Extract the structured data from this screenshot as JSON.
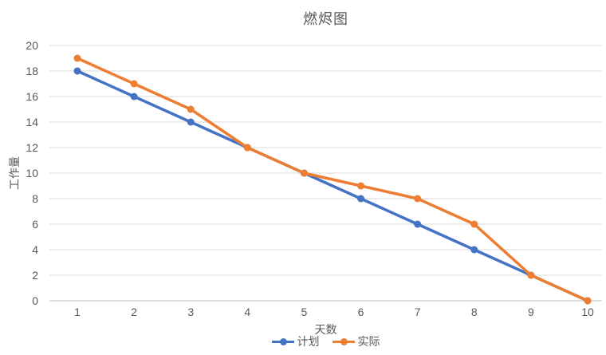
{
  "chart_data": {
    "type": "line",
    "title": "燃烬图",
    "xlabel": "天数",
    "ylabel": "工作量",
    "categories": [
      "1",
      "2",
      "3",
      "4",
      "5",
      "6",
      "7",
      "8",
      "9",
      "10"
    ],
    "series": [
      {
        "name": "计划",
        "color": "#4472C4",
        "values": [
          18,
          16,
          14,
          12,
          10,
          8,
          6,
          4,
          2,
          0
        ]
      },
      {
        "name": "实际",
        "color": "#ED7D31",
        "values": [
          19,
          17,
          15,
          12,
          10,
          9,
          8,
          6,
          2,
          0
        ]
      }
    ],
    "ylim": [
      0,
      20
    ],
    "yticks": [
      0,
      2,
      4,
      6,
      8,
      10,
      12,
      14,
      16,
      18,
      20
    ],
    "grid": true,
    "legend_position": "bottom",
    "colors": {
      "text": "#595959",
      "gridline": "#D9D9D9",
      "axis_line": "#BFBFBF",
      "background": "#FFFFFF"
    }
  }
}
